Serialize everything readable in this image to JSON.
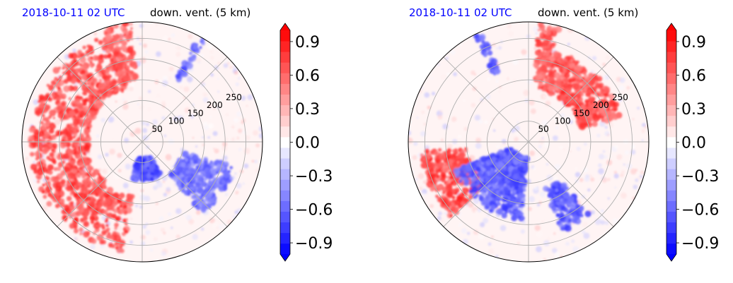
{
  "chart_data": [
    {
      "type": "heatmap",
      "projection": "polar",
      "title_left": "2018-10-11 02 UTC",
      "title_right": "down. vent. (5 km)",
      "radial_ticks": [
        50,
        100,
        150,
        200,
        250
      ],
      "radial_max": 290,
      "angular_gridlines_deg": [
        0,
        45,
        90,
        135,
        180,
        225,
        270,
        315
      ],
      "colorbar": {
        "ticks": [
          "−0.9",
          "−0.6",
          "−0.3",
          "0.0",
          "0.3",
          "0.6",
          "0.9"
        ],
        "tick_values": [
          -0.9,
          -0.6,
          -0.3,
          0.0,
          0.3,
          0.6,
          0.9
        ],
        "range": [
          -1.0,
          1.0
        ],
        "levels": 21,
        "colormap": "bwr",
        "extend": "both"
      },
      "features": [
        {
          "name": "positive arc",
          "value": 0.9,
          "az": [
            190,
            345
          ],
          "r": [
            130,
            270
          ]
        },
        {
          "name": "negative cluster",
          "value": -0.9,
          "az": [
            150,
            195
          ],
          "r": [
            40,
            95
          ]
        },
        {
          "name": "negative patches",
          "value": -0.7,
          "az": [
            105,
            140
          ],
          "r": [
            100,
            230
          ]
        },
        {
          "name": "positive beam",
          "value": 0.8,
          "az": [
            340,
            355
          ],
          "r": [
            150,
            290
          ]
        },
        {
          "name": "negative beam",
          "value": -0.8,
          "az": [
            28,
            32
          ],
          "r": [
            170,
            290
          ]
        }
      ]
    },
    {
      "type": "heatmap",
      "projection": "polar",
      "title_left": "2018-10-11 02 UTC",
      "title_right": "down. vent. (5 km)",
      "radial_ticks": [
        50,
        100,
        150,
        200,
        250
      ],
      "radial_max": 290,
      "angular_gridlines_deg": [
        0,
        45,
        90,
        135,
        180,
        225,
        270,
        315
      ],
      "colorbar": {
        "ticks": [
          "−0.9",
          "−0.6",
          "−0.3",
          "0.0",
          "0.3",
          "0.6",
          "0.9"
        ],
        "tick_values": [
          -0.9,
          -0.6,
          -0.3,
          0.0,
          0.3,
          0.6,
          0.9
        ],
        "range": [
          -1.0,
          1.0
        ],
        "levels": 21,
        "colormap": "bwr",
        "extend": "both"
      },
      "features": [
        {
          "name": "positive SW region",
          "value": 0.9,
          "az": [
            225,
            265
          ],
          "r": [
            150,
            260
          ]
        },
        {
          "name": "positive NE band",
          "value": 0.85,
          "az": [
            10,
            75
          ],
          "r": [
            130,
            230
          ]
        },
        {
          "name": "negative central band",
          "value": -0.8,
          "az": [
            185,
            250
          ],
          "r": [
            40,
            190
          ]
        },
        {
          "name": "negative SE streak",
          "value": -0.8,
          "az": [
            140,
            160
          ],
          "r": [
            120,
            230
          ]
        },
        {
          "name": "positive beam",
          "value": 0.8,
          "az": [
            5,
            15
          ],
          "r": [
            150,
            290
          ]
        },
        {
          "name": "negative beam",
          "value": -0.8,
          "az": [
            333,
            337
          ],
          "r": [
            180,
            290
          ]
        }
      ]
    }
  ]
}
